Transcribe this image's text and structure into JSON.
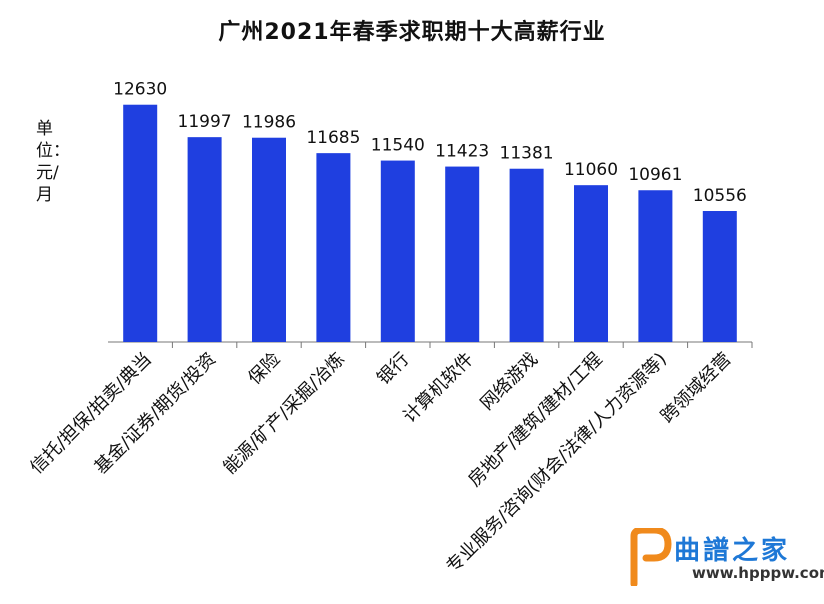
{
  "chart_data": {
    "type": "bar",
    "title": "广州2021年春季求职期十大高薪行业",
    "ylabel": "单位：元/月",
    "categories": [
      "信托/担保/拍卖/典当",
      "基金/证券/期货/投资",
      "保险",
      "能源/矿产/采掘/冶炼",
      "银行",
      "计算机软件",
      "网络游戏",
      "房地产/建筑/建材/工程",
      "专业服务/咨询(财会/法律/人力资源等)",
      "跨领域经营"
    ],
    "values": [
      12630,
      11997,
      11986,
      11685,
      11540,
      11423,
      11381,
      11060,
      10961,
      10556
    ],
    "ylim": [
      8000,
      12800
    ],
    "grid": false,
    "bar_color": "#1f3fe0"
  },
  "watermark": {
    "logo_text": "曲譜之家",
    "logo_url": "www.hpppw.com",
    "logo_color": "#1e78d6"
  }
}
